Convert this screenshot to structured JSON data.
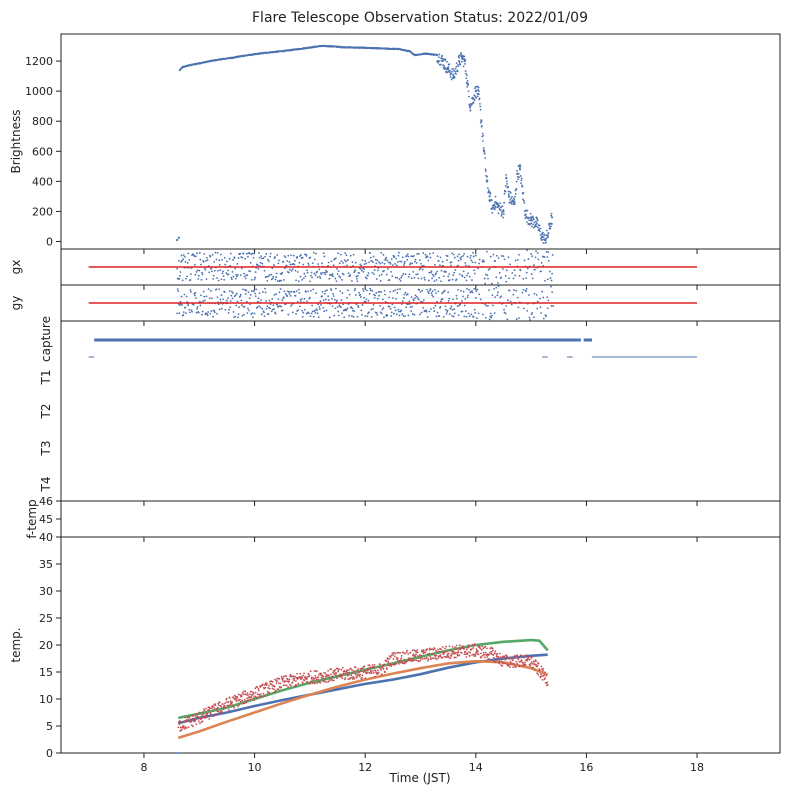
{
  "figure": {
    "title": "Flare Telescope Observation Status: 2022/01/09",
    "xlabel": "Time (JST)"
  },
  "colors": {
    "blue": "#4c72b0",
    "orange": "#dd8452",
    "green": "#55a868",
    "red": "#c44e52",
    "line_red": "#e02020",
    "axis": "#222222",
    "background": "#ffffff"
  },
  "chart_data": {
    "type": "scatter",
    "xlim": [
      6.5,
      19.5
    ],
    "x_ticks": [
      "8",
      "10",
      "12",
      "14",
      "16",
      "18"
    ],
    "panels": [
      {
        "id": "brightness",
        "ylabel": "Brightness",
        "ylim": [
          -50,
          1380
        ],
        "y_ticks": [
          "0",
          "200",
          "400",
          "600",
          "800",
          "1000",
          "1200"
        ],
        "series": [
          {
            "color": "blue",
            "points": [
              [
                8.6,
                10
              ],
              [
                8.63,
                25
              ],
              [
                8.65,
                1140
              ],
              [
                8.7,
                1160
              ],
              [
                8.8,
                1170
              ],
              [
                9.0,
                1185
              ],
              [
                9.2,
                1200
              ],
              [
                9.4,
                1212
              ],
              [
                9.6,
                1222
              ],
              [
                9.8,
                1235
              ],
              [
                10.0,
                1245
              ],
              [
                10.2,
                1255
              ],
              [
                10.4,
                1262
              ],
              [
                10.6,
                1270
              ],
              [
                10.8,
                1280
              ],
              [
                11.0,
                1290
              ],
              [
                11.2,
                1300
              ],
              [
                11.4,
                1298
              ],
              [
                11.6,
                1292
              ],
              [
                11.8,
                1290
              ],
              [
                12.0,
                1288
              ],
              [
                12.2,
                1285
              ],
              [
                12.4,
                1282
              ],
              [
                12.6,
                1280
              ],
              [
                12.8,
                1265
              ],
              [
                12.9,
                1240
              ],
              [
                13.0,
                1245
              ],
              [
                13.1,
                1250
              ],
              [
                13.2,
                1245
              ],
              [
                13.3,
                1240
              ],
              [
                13.4,
                1200
              ],
              [
                13.5,
                1150
              ],
              [
                13.6,
                1100
              ],
              [
                13.7,
                1200
              ],
              [
                13.75,
                1220
              ],
              [
                13.8,
                1200
              ],
              [
                13.85,
                1050
              ],
              [
                13.9,
                900
              ],
              [
                13.95,
                950
              ],
              [
                14.0,
                1000
              ],
              [
                14.05,
                980
              ],
              [
                14.1,
                800
              ],
              [
                14.15,
                600
              ],
              [
                14.2,
                400
              ],
              [
                14.25,
                300
              ],
              [
                14.3,
                220
              ],
              [
                14.35,
                260
              ],
              [
                14.4,
                230
              ],
              [
                14.5,
                200
              ],
              [
                14.55,
                420
              ],
              [
                14.6,
                300
              ],
              [
                14.7,
                250
              ],
              [
                14.75,
                450
              ],
              [
                14.8,
                480
              ],
              [
                14.85,
                320
              ],
              [
                14.9,
                180
              ],
              [
                15.0,
                140
              ],
              [
                15.1,
                120
              ],
              [
                15.2,
                30
              ],
              [
                15.25,
                10
              ],
              [
                15.3,
                40
              ],
              [
                15.35,
                120
              ],
              [
                15.38,
                160
              ]
            ]
          }
        ]
      },
      {
        "id": "gx",
        "ylabel": "gx",
        "lines": [
          {
            "color": "line_red",
            "x": [
              7.0,
              18.0
            ],
            "y": [
              0,
              0
            ]
          }
        ],
        "scatter_range": [
          8.6,
          15.4
        ],
        "series": [
          {
            "color": "blue",
            "note": "noisy scatter around 0"
          }
        ]
      },
      {
        "id": "gy",
        "ylabel": "gy",
        "lines": [
          {
            "color": "line_red",
            "x": [
              7.0,
              18.0
            ],
            "y": [
              0,
              0
            ]
          }
        ],
        "scatter_range": [
          8.6,
          15.4
        ],
        "series": [
          {
            "color": "blue",
            "note": "noisy scatter around 0"
          }
        ]
      },
      {
        "id": "capture",
        "ylabel": "capture",
        "category_labels": [
          "T1",
          "T2",
          "T3",
          "T4"
        ],
        "segments": [
          {
            "level": "capture",
            "color": "blue",
            "x_from": 7.1,
            "x_to": 15.9
          },
          {
            "level": "capture",
            "color": "blue",
            "x_from": 15.95,
            "x_to": 16.1
          },
          {
            "level": "T1",
            "color": "blue",
            "x_from": 7.0,
            "x_to": 7.1
          },
          {
            "level": "T1",
            "color": "blue",
            "x_from": 16.1,
            "x_to": 18.0
          },
          {
            "level": "T1",
            "color": "blue",
            "x_from": 15.2,
            "x_to": 15.3
          },
          {
            "level": "T1",
            "color": "blue",
            "x_from": 15.65,
            "x_to": 15.75
          }
        ]
      },
      {
        "id": "f-temp",
        "ylabel": "f-temp",
        "ylim": [
          44,
          46
        ],
        "y_ticks": [
          "45",
          "46"
        ]
      },
      {
        "id": "temp",
        "ylabel": "temp.",
        "ylim": [
          0,
          40
        ],
        "y_ticks": [
          "0",
          "5",
          "10",
          "15",
          "20",
          "25",
          "30",
          "35",
          "40"
        ],
        "series": [
          {
            "color": "blue",
            "points": [
              [
                8.62,
                5.5
              ],
              [
                9.0,
                6.5
              ],
              [
                9.5,
                7.5
              ],
              [
                10.0,
                8.7
              ],
              [
                10.5,
                9.8
              ],
              [
                11.0,
                10.8
              ],
              [
                11.5,
                11.8
              ],
              [
                12.0,
                12.8
              ],
              [
                12.5,
                13.6
              ],
              [
                13.0,
                14.6
              ],
              [
                13.5,
                15.8
              ],
              [
                14.0,
                16.8
              ],
              [
                14.5,
                17.5
              ],
              [
                15.0,
                18.0
              ],
              [
                15.3,
                18.2
              ]
            ]
          },
          {
            "color": "orange",
            "points": [
              [
                8.62,
                2.8
              ],
              [
                9.0,
                4.0
              ],
              [
                9.5,
                5.8
              ],
              [
                10.0,
                7.5
              ],
              [
                10.5,
                9.2
              ],
              [
                11.0,
                10.8
              ],
              [
                11.5,
                12.3
              ],
              [
                12.0,
                13.6
              ],
              [
                12.5,
                14.7
              ],
              [
                13.0,
                15.7
              ],
              [
                13.5,
                16.6
              ],
              [
                14.0,
                17.0
              ],
              [
                14.5,
                16.8
              ],
              [
                15.0,
                15.7
              ],
              [
                15.3,
                14.5
              ]
            ]
          },
          {
            "color": "green",
            "points": [
              [
                8.62,
                6.5
              ],
              [
                9.0,
                7.3
              ],
              [
                9.5,
                8.4
              ],
              [
                10.0,
                10.0
              ],
              [
                10.5,
                11.6
              ],
              [
                11.0,
                13.0
              ],
              [
                11.5,
                14.2
              ],
              [
                12.0,
                15.4
              ],
              [
                12.5,
                16.6
              ],
              [
                13.0,
                17.8
              ],
              [
                13.5,
                19.0
              ],
              [
                14.0,
                20.0
              ],
              [
                14.5,
                20.6
              ],
              [
                15.0,
                20.9
              ],
              [
                15.15,
                20.8
              ],
              [
                15.3,
                19.0
              ]
            ]
          },
          {
            "color": "red",
            "noisy": true,
            "points": [
              [
                8.62,
                5.0
              ],
              [
                9.0,
                6.5
              ],
              [
                9.5,
                9.0
              ],
              [
                10.0,
                11.0
              ],
              [
                10.5,
                13.0
              ],
              [
                11.0,
                14.0
              ],
              [
                11.5,
                14.5
              ],
              [
                12.0,
                15.0
              ],
              [
                12.3,
                15.5
              ],
              [
                12.5,
                17.5
              ],
              [
                13.0,
                18.0
              ],
              [
                13.5,
                18.7
              ],
              [
                14.0,
                19.0
              ],
              [
                14.3,
                18.3
              ],
              [
                14.5,
                17.0
              ],
              [
                15.0,
                17.0
              ],
              [
                15.3,
                13.5
              ]
            ]
          }
        ]
      }
    ]
  }
}
